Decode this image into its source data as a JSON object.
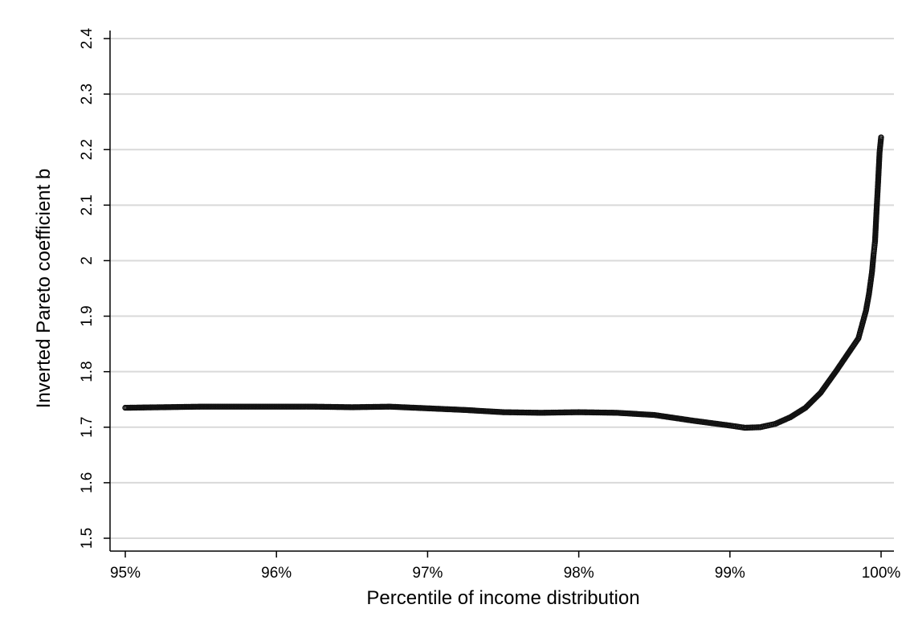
{
  "chart_data": {
    "type": "scatter",
    "xlabel": "Percentile of income distribution",
    "ylabel": "Inverted Pareto coefficient b",
    "xlim": [
      95,
      100
    ],
    "ylim": [
      1.5,
      2.4
    ],
    "x_ticks": [
      95,
      96,
      97,
      98,
      99,
      100
    ],
    "x_tick_labels": [
      "95%",
      "96%",
      "97%",
      "98%",
      "99%",
      "100%"
    ],
    "y_ticks": [
      1.5,
      1.6,
      1.7,
      1.8,
      1.9,
      2.0,
      2.1,
      2.2,
      2.3,
      2.4
    ],
    "y_tick_labels": [
      "1.5",
      "1.6",
      "1.7",
      "1.8",
      "1.9",
      "2",
      "2.1",
      "2.2",
      "2.3",
      "2.4"
    ],
    "grid": true,
    "legend": "none",
    "series": [
      {
        "marker": "hollow-circle",
        "color": "#111111",
        "points": [
          [
            95.0,
            1.735
          ],
          [
            95.25,
            1.736
          ],
          [
            95.5,
            1.737
          ],
          [
            95.75,
            1.737
          ],
          [
            96.0,
            1.737
          ],
          [
            96.25,
            1.737
          ],
          [
            96.5,
            1.736
          ],
          [
            96.75,
            1.737
          ],
          [
            97.0,
            1.734
          ],
          [
            97.25,
            1.731
          ],
          [
            97.5,
            1.727
          ],
          [
            97.75,
            1.726
          ],
          [
            98.0,
            1.727
          ],
          [
            98.25,
            1.726
          ],
          [
            98.5,
            1.722
          ],
          [
            98.75,
            1.712
          ],
          [
            99.0,
            1.703
          ],
          [
            99.1,
            1.699
          ],
          [
            99.2,
            1.7
          ],
          [
            99.3,
            1.706
          ],
          [
            99.4,
            1.718
          ],
          [
            99.5,
            1.735
          ],
          [
            99.6,
            1.762
          ],
          [
            99.7,
            1.8
          ],
          [
            99.8,
            1.84
          ],
          [
            99.85,
            1.86
          ],
          [
            99.88,
            1.89
          ],
          [
            99.9,
            1.91
          ],
          [
            99.92,
            1.94
          ],
          [
            99.94,
            1.98
          ],
          [
            99.95,
            2.01
          ],
          [
            99.96,
            2.035
          ],
          [
            99.97,
            2.09
          ],
          [
            99.98,
            2.14
          ],
          [
            99.99,
            2.195
          ],
          [
            100.0,
            2.222
          ]
        ]
      }
    ]
  }
}
